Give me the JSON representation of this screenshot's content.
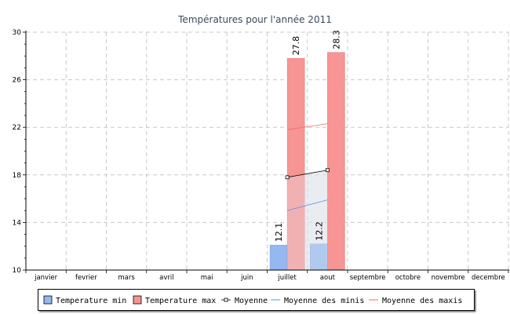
{
  "chart_data": {
    "type": "bar",
    "title": "Températures pour l'année 2011",
    "categories": [
      "janvier",
      "fevrier",
      "mars",
      "avril",
      "mai",
      "juin",
      "juillet",
      "aout",
      "septembre",
      "octobre",
      "novembre",
      "decembre"
    ],
    "ylim": [
      10,
      30
    ],
    "yticks": [
      10,
      14,
      18,
      22,
      26,
      30
    ],
    "grid": true,
    "legend_position": "bottom",
    "series": [
      {
        "name": "Temperature min",
        "type": "bar",
        "color": "#94b8f0",
        "values": [
          null,
          null,
          null,
          null,
          null,
          null,
          12.1,
          12.2,
          null,
          null,
          null,
          null
        ],
        "labels": [
          null,
          null,
          null,
          null,
          null,
          null,
          "12.1",
          "12.2",
          null,
          null,
          null,
          null
        ]
      },
      {
        "name": "Temperature max",
        "type": "bar",
        "color": "#f79494",
        "values": [
          null,
          null,
          null,
          null,
          null,
          null,
          27.8,
          28.3,
          null,
          null,
          null,
          null
        ],
        "labels": [
          null,
          null,
          null,
          null,
          null,
          null,
          "27.8",
          "28.3",
          null,
          null,
          null,
          null
        ]
      },
      {
        "name": "Moyenne",
        "type": "line",
        "color": "#000000",
        "marker": "square",
        "values": [
          null,
          null,
          null,
          null,
          null,
          null,
          17.8,
          18.4,
          null,
          null,
          null,
          null
        ]
      },
      {
        "name": "Moyenne des minis",
        "type": "line",
        "color": "#5b8fe8",
        "values": [
          null,
          null,
          null,
          null,
          null,
          null,
          15.0,
          15.9,
          null,
          null,
          null,
          null
        ]
      },
      {
        "name": "Moyenne des maxis",
        "type": "line",
        "color": "#f06868",
        "values": [
          null,
          null,
          null,
          null,
          null,
          null,
          21.8,
          22.3,
          null,
          null,
          null,
          null
        ]
      }
    ]
  }
}
